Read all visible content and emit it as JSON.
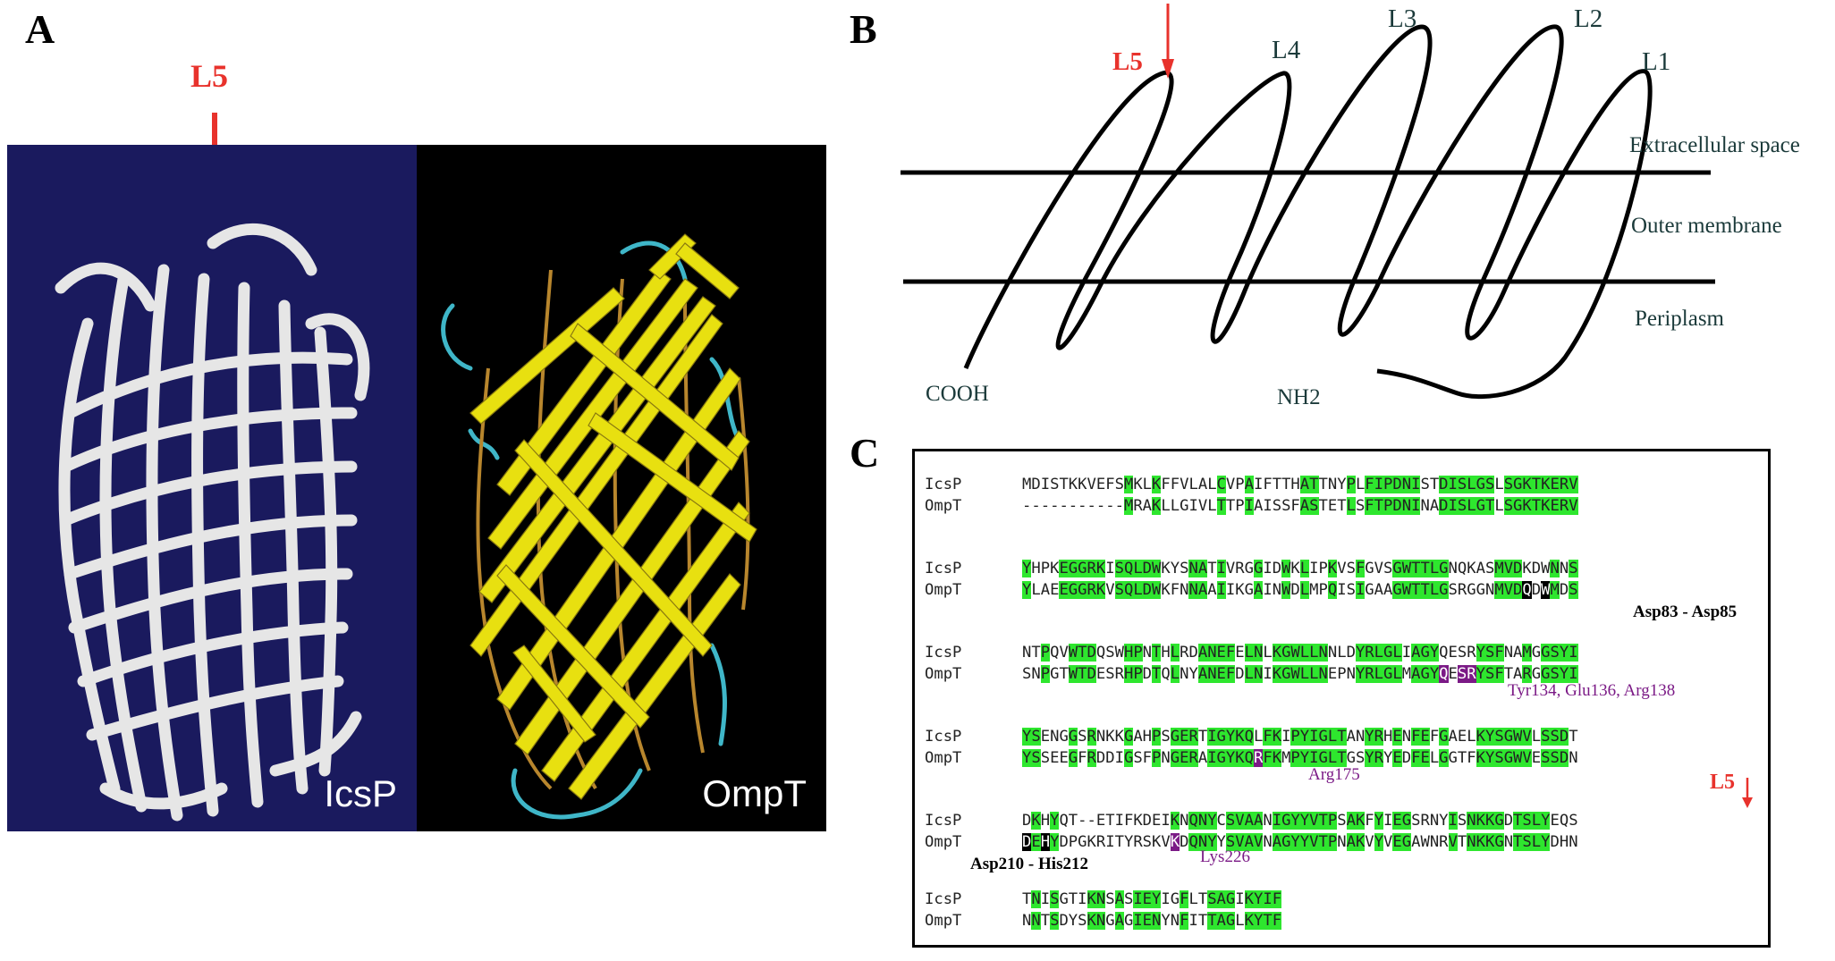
{
  "panel_labels": {
    "a": "A",
    "b": "B",
    "c": "C"
  },
  "panel_a": {
    "arrow_label": "L5",
    "left_structure_label": "IcsP",
    "right_structure_label": "OmpT",
    "colors": {
      "icsp_bg": "#1a1a5e",
      "ompt_bg": "#000000",
      "arrow": "#e8322c",
      "ompt_strand": "#e8e010",
      "ompt_loop": "#3fb6c8"
    }
  },
  "panel_b": {
    "arrow_label": "L5",
    "loop_labels": [
      "L4",
      "L3",
      "L2",
      "L1"
    ],
    "region_labels": [
      "Extracellular space",
      "Outer membrane",
      "Periplasm"
    ],
    "terminus_labels": [
      "COOH",
      "NH2"
    ]
  },
  "panel_c": {
    "blocks": [
      {
        "icsp": "MDISTKKVEFSMKLKFFVLALCVPAIFTTHATTNYPLFIPDNISTDISLGSLSGKTKERV",
        "ompt": "-----------MRAKLLGIVLTTPIAISSFASTETLSFTPDNINADISLGTLSGKTKERV",
        "green": [
          12,
          15,
          22,
          25,
          31,
          32,
          36,
          38,
          39,
          40,
          41,
          42,
          43,
          46,
          47,
          48,
          49,
          50,
          51,
          53,
          54,
          55,
          56,
          57,
          58,
          59,
          60
        ]
      },
      {
        "icsp": "YHPKEGGRKISQLDWKYSNATIVRGGIDWKLIPKVSFGVSGWTTLGNQKASMVDKDWNNS",
        "ompt": "YLAEEGGRKVSQLDWKFNNAAIIKGAINWDLMPQISIGAAGWTTLGSRGGNMVDQDWMDS",
        "green": [
          1,
          5,
          6,
          7,
          8,
          9,
          11,
          12,
          13,
          14,
          15,
          19,
          20,
          22,
          26,
          29,
          31,
          34,
          37,
          41,
          42,
          43,
          44,
          45,
          46,
          52,
          53,
          54,
          58,
          60
        ],
        "black": [
          55,
          57
        ]
      },
      {
        "icsp": "NTPQVWTDQSWHPNTHLRDANEFELNLKGWLLNNLDYRLGLIAGYQESRYSFNAMGGSYI",
        "ompt": "SNPGTWTDESRHPDTQLNYANEFDLNIKGWLLNEPNYRLGLMAGYQESRYSFTARGGSYI",
        "green": [
          3,
          6,
          7,
          8,
          12,
          13,
          15,
          17,
          20,
          21,
          22,
          23,
          25,
          26,
          28,
          29,
          30,
          31,
          32,
          33,
          37,
          38,
          39,
          40,
          41,
          43,
          44,
          45,
          50,
          51,
          52,
          55,
          57,
          58,
          59,
          60
        ],
        "purple": [
          46,
          48,
          49
        ]
      },
      {
        "icsp": "YSENGGSRNKKGAHPSGERTIGYKQLFKIPYIGLTANYRHENFEFGAELKYSGWVLSSDT",
        "ompt": "YSSEEGFRDDIGSFPNGERAIGYKQRFKMPYIGLTGSYRYEDFELGGTFKYSGWVESSDN",
        "green": [
          1,
          2,
          6,
          8,
          12,
          15,
          17,
          18,
          19,
          21,
          22,
          23,
          24,
          25,
          27,
          28,
          30,
          31,
          32,
          33,
          34,
          35,
          38,
          39,
          41,
          43,
          44,
          46,
          50,
          51,
          52,
          53,
          54,
          55,
          57,
          58,
          59
        ],
        "purple": [
          26
        ]
      },
      {
        "icsp": "DKHYQT--ETIFKDEIKNQNYCSVAANIGYYVTPSAKFYIEGSRNYISNKKGDTSLYEQS",
        "ompt": "DEHYDPGKRITYRSKVKDQNYYSVAVNAGYYVTPNAKVYVEGAWNRVTNKKGNTSLYDHN",
        "green": [
          2,
          4,
          17,
          19,
          20,
          21,
          23,
          24,
          25,
          26,
          28,
          29,
          30,
          31,
          32,
          33,
          34,
          36,
          37,
          39,
          41,
          42,
          47,
          49,
          50,
          51,
          52,
          54,
          55,
          56,
          57
        ],
        "black": [
          1,
          3
        ],
        "purple_ompt": [
          17
        ]
      },
      {
        "icsp": "TNISGTIKNSASIEYIGFLTSAGIKYIF",
        "ompt": "NNTSDYSKNGAGIENYNFITTAGLKYTF",
        "green": [
          2,
          4,
          8,
          9,
          11,
          13,
          14,
          15,
          18,
          21,
          22,
          23,
          25,
          26,
          27,
          28
        ]
      }
    ],
    "seq_names": [
      "IcsP",
      "OmpT"
    ],
    "annotations": [
      {
        "text": "Asp83 - Asp85",
        "style": "bold"
      },
      {
        "text": "Tyr134, Glu136, Arg138",
        "style": "purple"
      },
      {
        "text": "Arg175",
        "style": "purple"
      },
      {
        "text": "Asp210 - His212",
        "style": "bold"
      },
      {
        "text": "Lys226",
        "style": "purple"
      },
      {
        "text": "L5",
        "style": "red"
      }
    ],
    "colors": {
      "identity": "#2ee62e",
      "catalytic": "#000000",
      "binding": "#7b1a86"
    }
  }
}
